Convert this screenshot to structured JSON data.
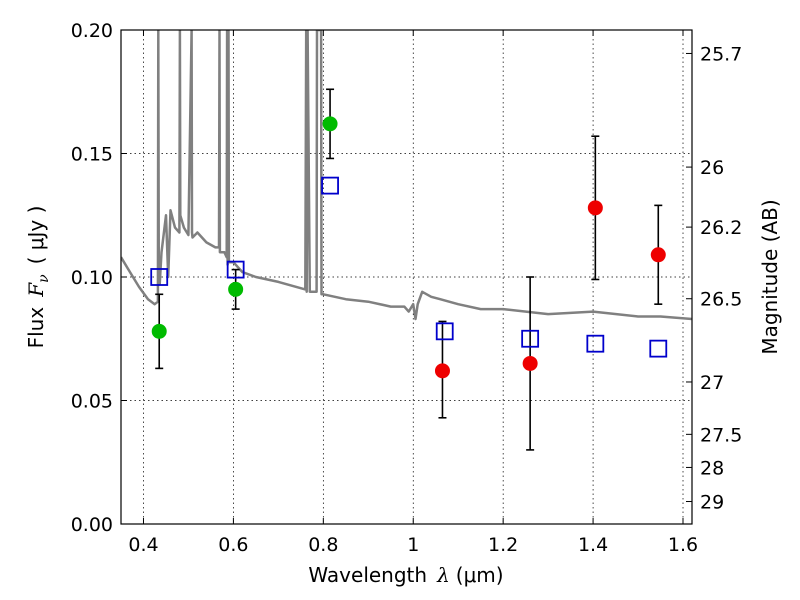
{
  "chart_data": {
    "type": "scatter",
    "xlabel": "Wavelength",
    "xlabel_symbol": "λ",
    "xlabel_unit": "(μm)",
    "ylabel": "Flux",
    "ylabel_symbol": "F",
    "ylabel_subscript": "ν",
    "ylabel_unit": "( μJy )",
    "y2label": "Magnitude (AB)",
    "xlim": [
      0.35,
      1.62
    ],
    "ylim": [
      0.0,
      0.2
    ],
    "grid": true,
    "x_ticks": [
      0.4,
      0.6,
      0.8,
      1.0,
      1.2,
      1.4,
      1.6
    ],
    "x_tick_labels": [
      "0.4",
      "0.6",
      "0.8",
      "1",
      "1.2",
      "1.4",
      "1.6"
    ],
    "y_ticks": [
      0.0,
      0.05,
      0.1,
      0.15,
      0.2
    ],
    "y_tick_labels": [
      "0.00",
      "0.05",
      "0.10",
      "0.15",
      "0.20"
    ],
    "y2_ticks": [
      {
        "label": "25.7",
        "flux": 0.1905
      },
      {
        "label": "26",
        "flux": 0.1445
      },
      {
        "label": "26.2",
        "flux": 0.1202
      },
      {
        "label": "26.5",
        "flux": 0.0912
      },
      {
        "label": "27",
        "flux": 0.0575
      },
      {
        "label": "27.5",
        "flux": 0.0363
      },
      {
        "label": "28",
        "flux": 0.0229
      },
      {
        "label": "29",
        "flux": 0.0091
      }
    ],
    "series": [
      {
        "kind": "line",
        "color": "#808080",
        "x": [
          0.35,
          0.37,
          0.39,
          0.41,
          0.425,
          0.432,
          0.433,
          0.434,
          0.436,
          0.44,
          0.45,
          0.455,
          0.46,
          0.47,
          0.48,
          0.481,
          0.482,
          0.49,
          0.5,
          0.507,
          0.508,
          0.509,
          0.52,
          0.54,
          0.56,
          0.568,
          0.569,
          0.57,
          0.58,
          0.585,
          0.586,
          0.587,
          0.589,
          0.59,
          0.6,
          0.62,
          0.65,
          0.7,
          0.74,
          0.76,
          0.762,
          0.763,
          0.765,
          0.77,
          0.785,
          0.786,
          0.79,
          0.795,
          0.796,
          0.8,
          0.85,
          0.9,
          0.95,
          0.98,
          0.99,
          1.0,
          1.005,
          1.01,
          1.02,
          1.04,
          1.06,
          1.1,
          1.15,
          1.2,
          1.3,
          1.4,
          1.5,
          1.55,
          1.62
        ],
        "y": [
          0.108,
          0.102,
          0.096,
          0.091,
          0.089,
          0.09,
          0.2,
          0.1,
          0.097,
          0.11,
          0.125,
          0.1,
          0.127,
          0.12,
          0.118,
          0.2,
          0.125,
          0.12,
          0.117,
          0.2,
          0.118,
          0.116,
          0.118,
          0.114,
          0.112,
          0.112,
          0.2,
          0.11,
          0.11,
          0.108,
          0.2,
          0.105,
          0.2,
          0.106,
          0.106,
          0.102,
          0.1,
          0.098,
          0.096,
          0.095,
          0.2,
          0.094,
          0.2,
          0.094,
          0.094,
          0.2,
          0.2,
          0.2,
          0.093,
          0.093,
          0.091,
          0.09,
          0.088,
          0.088,
          0.086,
          0.089,
          0.083,
          0.089,
          0.094,
          0.092,
          0.091,
          0.089,
          0.087,
          0.087,
          0.085,
          0.086,
          0.084,
          0.084,
          0.083
        ]
      },
      {
        "kind": "open-square",
        "color": "#0000cc",
        "x": [
          0.435,
          0.605,
          0.815,
          1.07,
          1.26,
          1.405,
          1.545
        ],
        "y": [
          0.1,
          0.103,
          0.137,
          0.078,
          0.075,
          0.073,
          0.071
        ]
      },
      {
        "kind": "filled-circle",
        "color": "#00bb00",
        "x": [
          0.435,
          0.605,
          0.815
        ],
        "y": [
          0.078,
          0.095,
          0.162
        ],
        "yerr_low": [
          0.063,
          0.087,
          0.148
        ],
        "yerr_high": [
          0.093,
          0.103,
          0.176
        ]
      },
      {
        "kind": "filled-circle",
        "color": "#ee0000",
        "x": [
          1.065,
          1.26,
          1.405,
          1.545
        ],
        "y": [
          0.062,
          0.065,
          0.128,
          0.109
        ],
        "yerr_low": [
          0.043,
          0.03,
          0.099,
          0.089
        ],
        "yerr_high": [
          0.082,
          0.1,
          0.157,
          0.129
        ]
      }
    ]
  }
}
